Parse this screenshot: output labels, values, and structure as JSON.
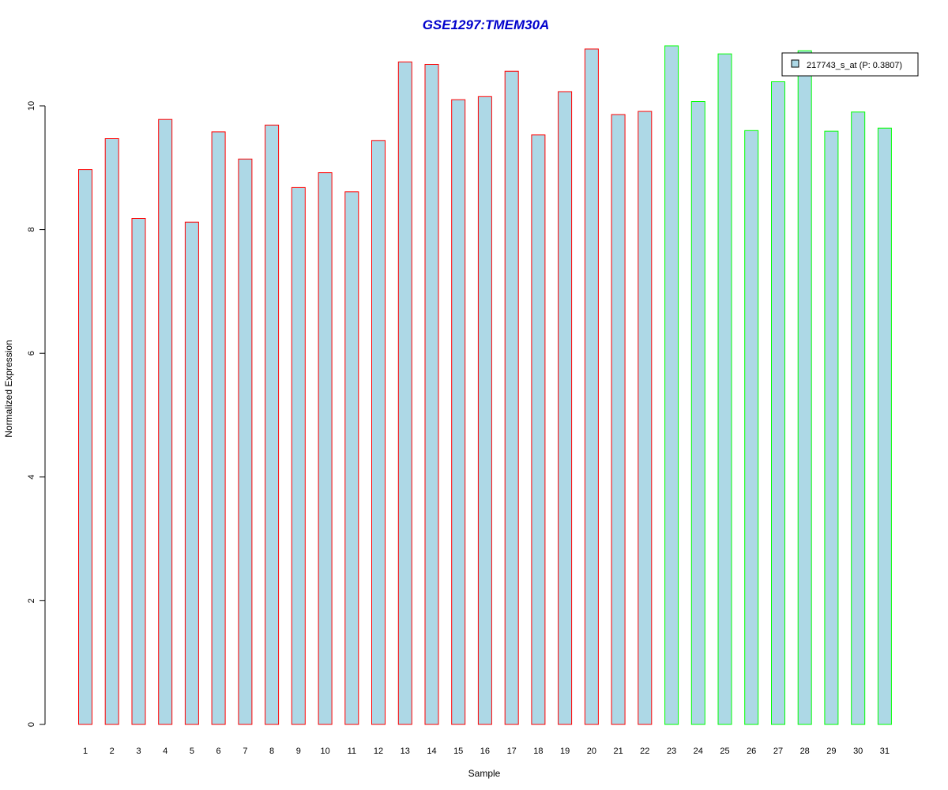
{
  "chart_data": {
    "type": "bar",
    "title": "GSE1297:TMEM30A",
    "xlabel": "Sample",
    "ylabel": "Normalized Expression",
    "ylim": [
      0,
      11
    ],
    "yticks": [
      0,
      2,
      4,
      6,
      8,
      10
    ],
    "grid": false,
    "legend_position": "top-right",
    "categories": [
      "1",
      "2",
      "3",
      "4",
      "5",
      "6",
      "7",
      "8",
      "9",
      "10",
      "11",
      "12",
      "13",
      "14",
      "15",
      "16",
      "17",
      "18",
      "19",
      "20",
      "21",
      "22",
      "23",
      "24",
      "25",
      "26",
      "27",
      "28",
      "29",
      "30",
      "31"
    ],
    "series": [
      {
        "name": "217743_s_at (P: 0.3807)",
        "values": [
          8.97,
          9.47,
          8.18,
          9.78,
          8.12,
          9.58,
          9.14,
          9.69,
          8.68,
          8.92,
          8.61,
          9.44,
          10.71,
          10.67,
          10.1,
          10.15,
          10.56,
          9.53,
          10.23,
          10.92,
          9.86,
          9.91,
          10.97,
          10.07,
          10.84,
          9.6,
          10.39,
          10.89,
          9.59,
          9.9,
          9.64
        ],
        "fill_color": "#add8e6"
      }
    ],
    "groups": [
      {
        "samples": "1-22",
        "border_color": "#ff0000"
      },
      {
        "samples": "23-31",
        "border_color": "#00ff00"
      }
    ],
    "title_color": "#0000cc"
  }
}
